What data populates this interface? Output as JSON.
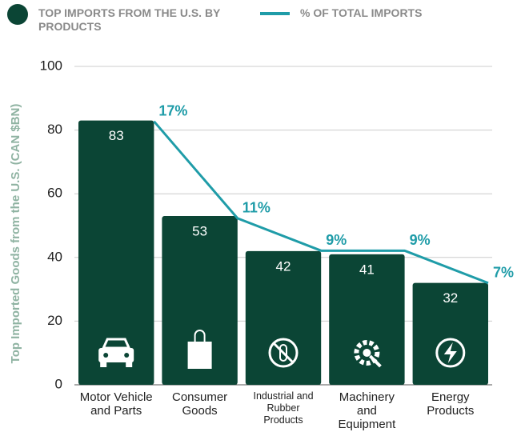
{
  "chart_data": {
    "type": "bar_line",
    "y_label": "Top Imported Goods from the U.S. (CAN $BN)",
    "categories": [
      "Motor Vehicle and Parts",
      "Consumer Goods",
      "Industrial and Rubber Products",
      "Machinery and Equipment",
      "Energy Products"
    ],
    "series": [
      {
        "name": "TOP IMPORTS FROM THE U.S. BY PRODUCTS",
        "type": "bar",
        "color": "#0b4535",
        "values": [
          83,
          53,
          42,
          41,
          32
        ]
      },
      {
        "name": "% OF TOTAL IMPORTS",
        "type": "line",
        "axis": "y2",
        "color": "#1f9ca8",
        "values": [
          17,
          11,
          9,
          9,
          7
        ],
        "value_labels": [
          "17%",
          "11%",
          "9%",
          "9%",
          "7%"
        ]
      }
    ],
    "ylim": [
      0,
      100
    ],
    "yticks": [
      0,
      20,
      40,
      60,
      80,
      100
    ],
    "y2lim": [
      0.7,
      20.4
    ],
    "grid": true
  }
}
